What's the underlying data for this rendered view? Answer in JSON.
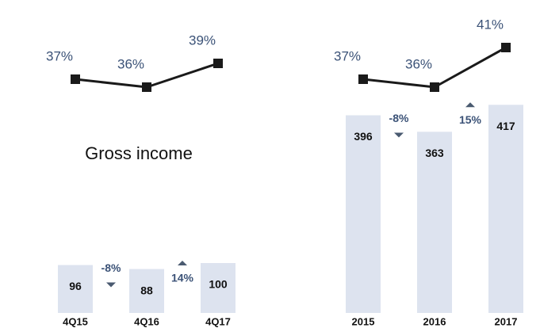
{
  "chart_data": [
    {
      "type": "bar",
      "title": "Gross income",
      "categories": [
        "4Q15",
        "4Q16",
        "4Q17"
      ],
      "values": [
        96,
        88,
        100
      ],
      "color": "#dde3ef",
      "line_values": [
        37,
        36,
        39
      ],
      "line_value_labels": [
        "37%",
        "36%",
        "39%"
      ],
      "line_color": "#1a1a1a",
      "changes": [
        -8,
        14
      ],
      "change_labels": [
        "-8%",
        "14%"
      ],
      "ylim": [
        0,
        600
      ],
      "y2lim": [
        30,
        42
      ]
    },
    {
      "type": "bar",
      "categories": [
        "2015",
        "2016",
        "2017"
      ],
      "values": [
        396,
        363,
        417
      ],
      "color": "#dde3ef",
      "line_values": [
        37,
        36,
        41
      ],
      "line_value_labels": [
        "37%",
        "36%",
        "41%"
      ],
      "line_color": "#1a1a1a",
      "changes": [
        -8,
        15
      ],
      "change_labels": [
        "-8%",
        "15%"
      ],
      "ylim": [
        0,
        600
      ],
      "y2lim": [
        31,
        44
      ]
    }
  ]
}
